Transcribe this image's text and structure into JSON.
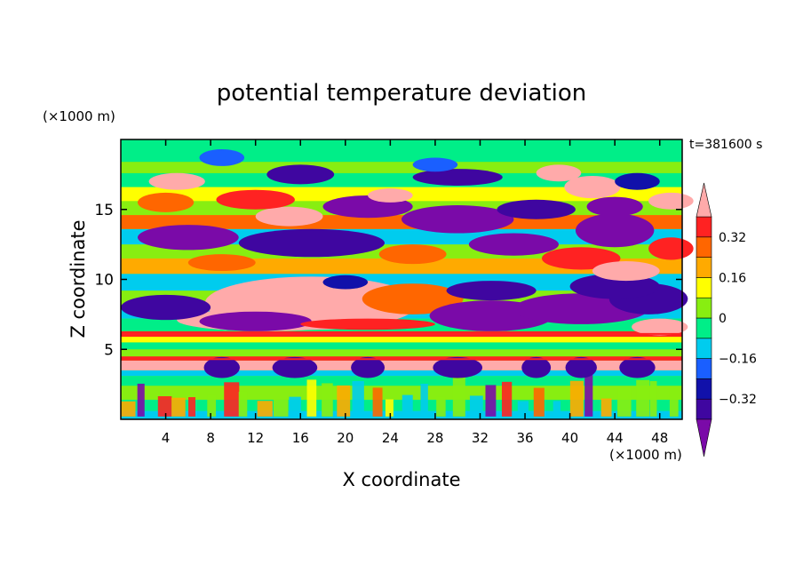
{
  "chart_data": {
    "type": "heatmap",
    "title": "potential temperature deviation",
    "xlabel": "X coordinate",
    "ylabel": "Z coordinate",
    "x_unit": "(×1000 m)",
    "y_unit": "(×1000 m)",
    "time_label": "t=381600 s",
    "xlim": [
      0,
      50
    ],
    "ylim": [
      0,
      20
    ],
    "x_ticks": [
      4,
      8,
      12,
      16,
      20,
      24,
      28,
      32,
      36,
      40,
      44,
      48
    ],
    "y_ticks": [
      5,
      10,
      15
    ],
    "grid": false,
    "colorbar": {
      "placement": "right",
      "levels": [
        -0.4,
        -0.32,
        -0.24,
        -0.16,
        -0.08,
        0,
        0.08,
        0.16,
        0.24,
        0.32,
        0.4
      ],
      "colors": [
        "#7a0aa8",
        "#3f06a0",
        "#1111aa",
        "#1a5fff",
        "#00ccee",
        "#00ee88",
        "#88ee11",
        "#ffff00",
        "#ffaa00",
        "#ff6600",
        "#ff2222",
        "#ffaaaa"
      ],
      "tick_labels": [
        "0.32",
        "0.16",
        "0",
        "−0.16",
        "−0.32"
      ],
      "tick_values": [
        0.32,
        0.16,
        0,
        -0.16,
        -0.32
      ]
    }
  }
}
